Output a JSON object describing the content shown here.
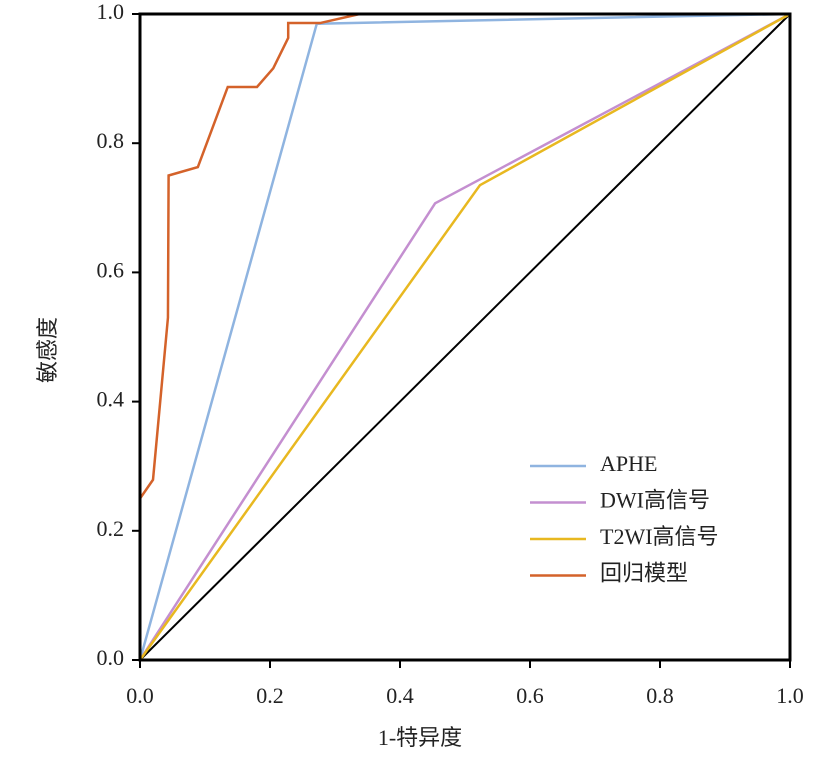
{
  "chart_data": {
    "type": "line",
    "xlabel": "1-特异度",
    "ylabel": "敏感度",
    "xlim": [
      0,
      1
    ],
    "ylim": [
      0,
      1
    ],
    "xticks": [
      {
        "value": 0,
        "label": "0.0"
      },
      0.2,
      0.4,
      0.6,
      0.8,
      {
        "value": 1,
        "label": "1.0"
      }
    ],
    "yticks": [
      {
        "value": 0,
        "label": "0.0"
      },
      0.2,
      0.4,
      0.6,
      0.8,
      {
        "value": 1,
        "label": "1.0"
      }
    ],
    "legend": "lower right",
    "reference_line": {
      "x": [
        0,
        1
      ],
      "values": [
        0,
        1
      ],
      "color": "#000000"
    },
    "series": [
      {
        "name": "APHE",
        "color": "#8fb4e0",
        "x": [
          0,
          0.272,
          1
        ],
        "values": [
          0,
          0.985,
          1
        ]
      },
      {
        "name": "DWI高信号",
        "color": "#c48fd0",
        "x": [
          0,
          0.454,
          1
        ],
        "values": [
          0,
          0.707,
          1
        ]
      },
      {
        "name": "T2WI高信号",
        "color": "#e8b820",
        "x": [
          0,
          0.523,
          1
        ],
        "values": [
          0,
          0.735,
          1
        ]
      },
      {
        "name": "回归模型",
        "color": "#d4622a",
        "x": [
          0,
          0,
          0.02,
          0.043,
          0.044,
          0.089,
          0.135,
          0.18,
          0.205,
          0.228,
          0.228,
          0.277,
          0.338,
          1
        ],
        "values": [
          0,
          0.25,
          0.279,
          0.53,
          0.75,
          0.763,
          0.887,
          0.887,
          0.916,
          0.963,
          0.986,
          0.986,
          1,
          1
        ]
      }
    ]
  }
}
